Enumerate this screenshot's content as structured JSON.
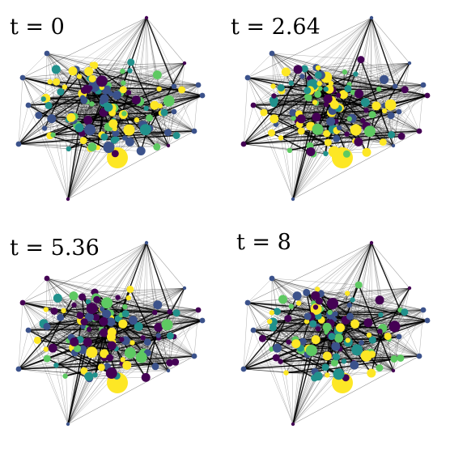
{
  "panels": [
    {
      "id": "p1",
      "label": "t = 0"
    },
    {
      "id": "p2",
      "label": "t = 2.64"
    },
    {
      "id": "p3",
      "label": "t = 5.36"
    },
    {
      "id": "p4",
      "label": "t = 8"
    }
  ],
  "colormap": [
    "#440154",
    "#3b528b",
    "#21918c",
    "#5ec962",
    "#fde725"
  ],
  "edge_color": "#000000",
  "node_count": 120
}
